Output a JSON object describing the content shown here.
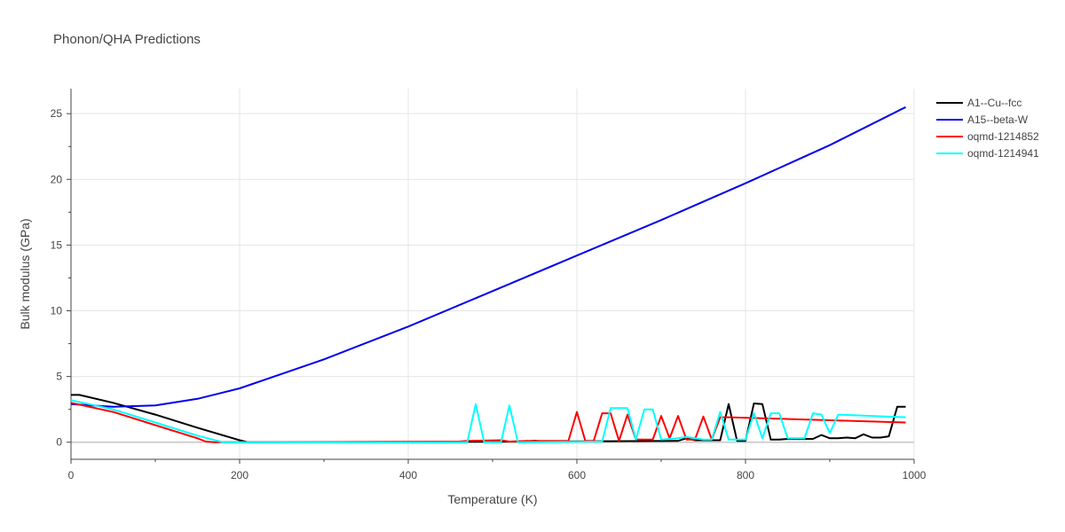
{
  "chart_data": {
    "type": "line",
    "title": "Phonon/QHA Predictions",
    "xlabel": "Temperature (K)",
    "ylabel": "Bulk modulus (GPa)",
    "xlim": [
      0,
      1000
    ],
    "ylim": [
      -1.3,
      26.9
    ],
    "xticks": [
      0,
      200,
      400,
      600,
      800,
      1000
    ],
    "yticks": [
      0,
      5,
      10,
      15,
      20,
      25
    ],
    "grid": true,
    "legend_position": "top-right outside",
    "series": [
      {
        "name": "A1--Cu--fcc",
        "color": "#000000",
        "x": [
          0,
          10,
          50,
          100,
          150,
          200,
          210,
          540,
          550,
          560,
          720,
          730,
          740,
          770,
          780,
          790,
          800,
          810,
          820,
          830,
          840,
          850,
          860,
          870,
          880,
          890,
          900,
          910,
          920,
          930,
          940,
          950,
          960,
          970,
          980,
          990
        ],
        "y": [
          3.6,
          3.6,
          3.0,
          2.1,
          1.1,
          0.15,
          0,
          0.05,
          0.12,
          0.05,
          0.1,
          0.3,
          0.15,
          0.15,
          2.9,
          0.1,
          0.1,
          2.95,
          2.9,
          0.2,
          0.2,
          0.25,
          0.25,
          0.25,
          0.25,
          0.55,
          0.3,
          0.3,
          0.35,
          0.3,
          0.6,
          0.35,
          0.35,
          0.45,
          2.7,
          2.7
        ]
      },
      {
        "name": "A15--beta-W",
        "color": "#0000ee",
        "x": [
          0,
          50,
          100,
          150,
          200,
          250,
          300,
          400,
          500,
          600,
          700,
          800,
          900,
          990
        ],
        "y": [
          2.9,
          2.7,
          2.8,
          3.3,
          4.1,
          5.2,
          6.3,
          8.8,
          11.5,
          14.2,
          16.9,
          19.7,
          22.6,
          25.5
        ]
      },
      {
        "name": "oqmd-1214852",
        "color": "#ff0000",
        "x": [
          0,
          50,
          100,
          150,
          160,
          170,
          460,
          470,
          510,
          520,
          540,
          590,
          600,
          610,
          620,
          630,
          640,
          650,
          660,
          670,
          680,
          690,
          700,
          710,
          720,
          730,
          740,
          750,
          760,
          770,
          780,
          990
        ],
        "y": [
          3.0,
          2.3,
          1.3,
          0.3,
          0.05,
          0,
          0.05,
          0.1,
          0.15,
          0.05,
          0.1,
          0.1,
          2.3,
          0.1,
          0.1,
          2.2,
          2.2,
          0.1,
          2.1,
          0.2,
          0.2,
          0.2,
          2.0,
          0.3,
          2.0,
          0.2,
          0.2,
          1.95,
          0.2,
          1.9,
          1.9,
          1.5
        ]
      },
      {
        "name": "oqmd-1214941",
        "color": "#00ffff",
        "x": [
          0,
          50,
          100,
          150,
          180,
          470,
          480,
          490,
          510,
          520,
          530,
          630,
          640,
          660,
          670,
          680,
          690,
          700,
          720,
          730,
          740,
          750,
          760,
          770,
          780,
          800,
          810,
          820,
          830,
          840,
          850,
          870,
          880,
          890,
          900,
          910,
          990
        ],
        "y": [
          3.2,
          2.5,
          1.5,
          0.5,
          0,
          0,
          2.9,
          0,
          0,
          2.8,
          0,
          0.05,
          2.6,
          2.6,
          0.2,
          2.5,
          2.5,
          0.2,
          0.3,
          0.4,
          0.3,
          0.2,
          0.2,
          2.3,
          0.2,
          0.2,
          2.2,
          0.3,
          2.2,
          2.2,
          0.3,
          0.3,
          2.2,
          2.1,
          0.7,
          2.1,
          1.9
        ]
      }
    ]
  }
}
